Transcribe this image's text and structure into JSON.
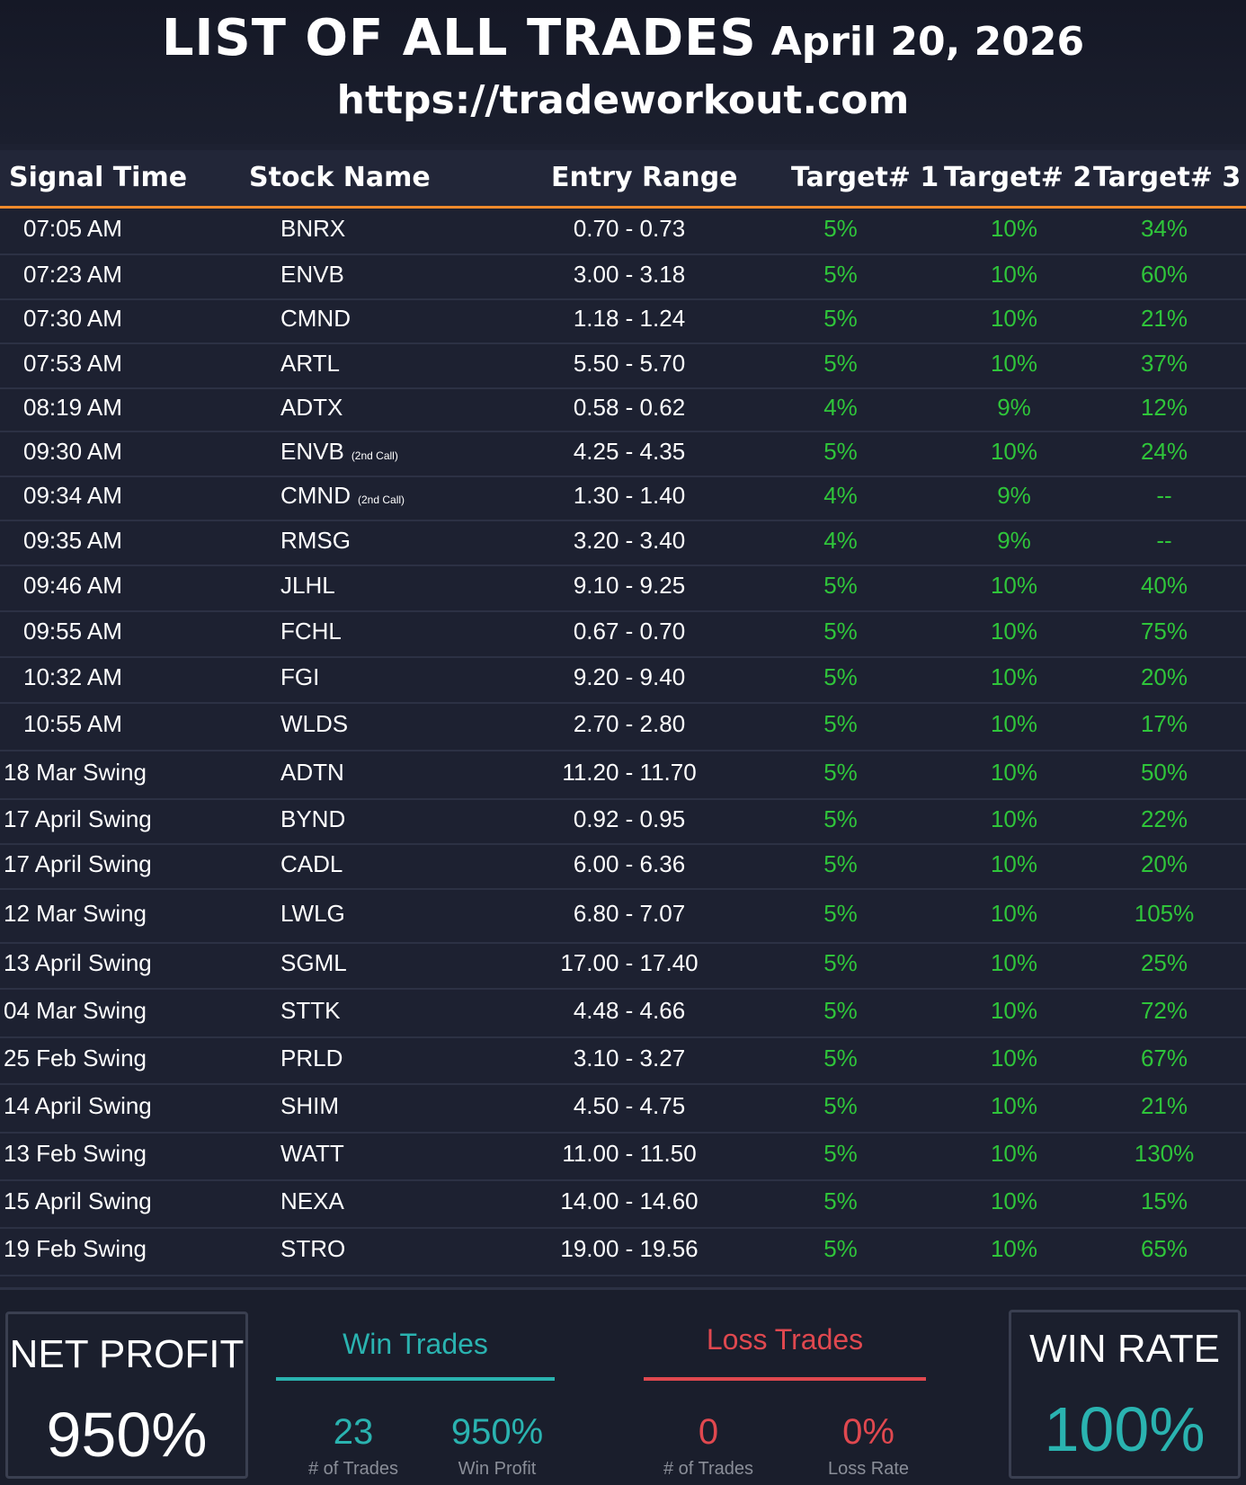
{
  "header": {
    "title": "LIST OF ALL TRADES",
    "date": "April 20, 2026",
    "url": "https://tradeworkout.com"
  },
  "columns": {
    "signal_time": "Signal Time",
    "stock_name": "Stock Name",
    "entry_range": "Entry Range",
    "target1": "Target# 1",
    "target2": "Target# 2",
    "target3": "Target# 3"
  },
  "trades": [
    {
      "time": "07:05 AM",
      "stock": "BNRX",
      "note": "",
      "range": "0.70 - 0.73",
      "t1": "5%",
      "t2": "10%",
      "t3": "34%"
    },
    {
      "time": "07:23 AM",
      "stock": "ENVB",
      "note": "",
      "range": "3.00 - 3.18",
      "t1": "5%",
      "t2": "10%",
      "t3": "60%"
    },
    {
      "time": "07:30 AM",
      "stock": "CMND",
      "note": "",
      "range": "1.18 - 1.24",
      "t1": "5%",
      "t2": "10%",
      "t3": "21%"
    },
    {
      "time": "07:53 AM",
      "stock": "ARTL",
      "note": "",
      "range": "5.50 - 5.70",
      "t1": "5%",
      "t2": "10%",
      "t3": "37%"
    },
    {
      "time": "08:19 AM",
      "stock": "ADTX",
      "note": "",
      "range": "0.58 - 0.62",
      "t1": "4%",
      "t2": "9%",
      "t3": "12%"
    },
    {
      "time": "09:30 AM",
      "stock": "ENVB",
      "note": "(2nd Call)",
      "range": "4.25 - 4.35",
      "t1": "5%",
      "t2": "10%",
      "t3": "24%"
    },
    {
      "time": "09:34 AM",
      "stock": "CMND",
      "note": "(2nd Call)",
      "range": "1.30 - 1.40",
      "t1": "4%",
      "t2": "9%",
      "t3": "--"
    },
    {
      "time": "09:35 AM",
      "stock": "RMSG",
      "note": "",
      "range": "3.20 - 3.40",
      "t1": "4%",
      "t2": "9%",
      "t3": "--"
    },
    {
      "time": "09:46 AM",
      "stock": "JLHL",
      "note": "",
      "range": "9.10 - 9.25",
      "t1": "5%",
      "t2": "10%",
      "t3": "40%"
    },
    {
      "time": "09:55 AM",
      "stock": "FCHL",
      "note": "",
      "range": "0.67 - 0.70",
      "t1": "5%",
      "t2": "10%",
      "t3": "75%"
    },
    {
      "time": "10:32 AM",
      "stock": "FGI",
      "note": "",
      "range": "9.20 - 9.40",
      "t1": "5%",
      "t2": "10%",
      "t3": "20%"
    },
    {
      "time": "10:55 AM",
      "stock": "WLDS",
      "note": "",
      "range": "2.70 - 2.80",
      "t1": "5%",
      "t2": "10%",
      "t3": "17%"
    },
    {
      "time": "18 Mar Swing",
      "stock": "ADTN",
      "note": "",
      "range": "11.20 - 11.70",
      "t1": "5%",
      "t2": "10%",
      "t3": "50%"
    },
    {
      "time": "17 April Swing",
      "stock": "BYND",
      "note": "",
      "range": "0.92 - 0.95",
      "t1": "5%",
      "t2": "10%",
      "t3": "22%"
    },
    {
      "time": "17 April Swing",
      "stock": "CADL",
      "note": "",
      "range": "6.00 - 6.36",
      "t1": "5%",
      "t2": "10%",
      "t3": "20%"
    },
    {
      "time": "12 Mar Swing",
      "stock": "LWLG",
      "note": "",
      "range": "6.80 - 7.07",
      "t1": "5%",
      "t2": "10%",
      "t3": "105%"
    },
    {
      "time": "13 April Swing",
      "stock": "SGML",
      "note": "",
      "range": "17.00 - 17.40",
      "t1": "5%",
      "t2": "10%",
      "t3": "25%"
    },
    {
      "time": "04 Mar Swing",
      "stock": "STTK",
      "note": "",
      "range": "4.48 - 4.66",
      "t1": "5%",
      "t2": "10%",
      "t3": "72%"
    },
    {
      "time": "25 Feb Swing",
      "stock": "PRLD",
      "note": "",
      "range": "3.10 - 3.27",
      "t1": "5%",
      "t2": "10%",
      "t3": "67%"
    },
    {
      "time": "14 April Swing",
      "stock": "SHIM",
      "note": "",
      "range": "4.50 - 4.75",
      "t1": "5%",
      "t2": "10%",
      "t3": "21%"
    },
    {
      "time": "13 Feb Swing",
      "stock": "WATT",
      "note": "",
      "range": "11.00 - 11.50",
      "t1": "5%",
      "t2": "10%",
      "t3": "130%"
    },
    {
      "time": "15 April Swing",
      "stock": "NEXA",
      "note": "",
      "range": "14.00 - 14.60",
      "t1": "5%",
      "t2": "10%",
      "t3": "15%"
    },
    {
      "time": "19 Feb Swing",
      "stock": "STRO",
      "note": "",
      "range": "19.00 - 19.56",
      "t1": "5%",
      "t2": "10%",
      "t3": "65%"
    }
  ],
  "summary": {
    "net_profit_label": "NET PROFIT",
    "net_profit_value": "950%",
    "win_title": "Win Trades",
    "win_count": "23",
    "win_count_label": "# of Trades",
    "win_profit": "950%",
    "win_profit_label": "Win Profit",
    "loss_title": "Loss Trades",
    "loss_count": "0",
    "loss_count_label": "# of Trades",
    "loss_rate": "0%",
    "loss_rate_label": "Loss Rate",
    "win_rate_label": "WIN RATE",
    "win_rate_value": "100%"
  },
  "colors": {
    "target_green": "#2fc53a",
    "header_rule_orange": "#f08a2c",
    "win_teal": "#2ab3b0",
    "loss_red": "#e0484f"
  }
}
